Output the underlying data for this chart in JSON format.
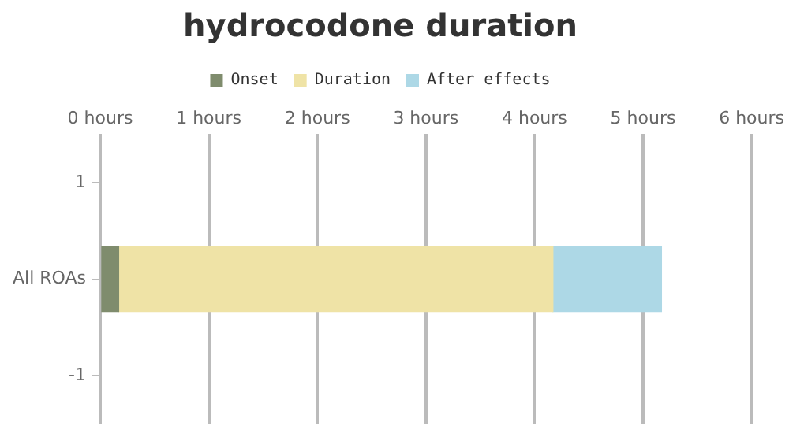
{
  "chart_data": {
    "type": "bar",
    "title": "hydrocodone duration",
    "orientation": "horizontal",
    "stacked": true,
    "x": [
      0
    ],
    "series": [
      {
        "name": "Onset",
        "color": "#7f8c6d",
        "values": [
          0.17
        ]
      },
      {
        "name": "Duration",
        "color": "#efe3a6",
        "values": [
          4
        ]
      },
      {
        "name": "After effects",
        "color": "#add8e6",
        "values": [
          1
        ]
      }
    ],
    "xlim": [
      0,
      6
    ],
    "xticks": [
      {
        "value": 0,
        "label": "0 hours"
      },
      {
        "value": 1,
        "label": "1 hours"
      },
      {
        "value": 2,
        "label": "2 hours"
      },
      {
        "value": 3,
        "label": "3 hours"
      },
      {
        "value": 4,
        "label": "4 hours"
      },
      {
        "value": 5,
        "label": "5 hours"
      },
      {
        "value": 6,
        "label": "6 hours"
      }
    ],
    "ylim": [
      -1.5,
      1.5
    ],
    "yticks": [
      1,
      {
        "value": 0,
        "label": "All ROAs"
      },
      -1
    ],
    "grid": "x",
    "legend": "top"
  }
}
